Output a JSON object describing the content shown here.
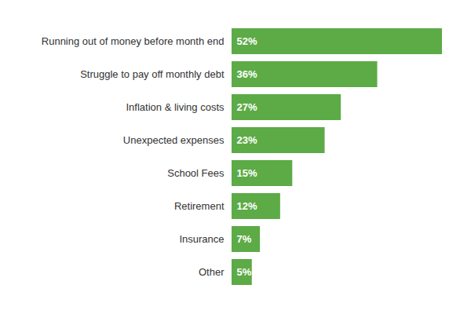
{
  "chart_data": {
    "type": "bar",
    "orientation": "horizontal",
    "categories": [
      "Running out of money before month end",
      "Struggle to pay off monthly debt",
      "Inflation & living costs",
      "Unexpected expenses",
      "School Fees",
      "Retirement",
      "Insurance",
      "Other"
    ],
    "values": [
      52,
      36,
      27,
      23,
      15,
      12,
      7,
      5
    ],
    "value_labels": [
      "52%",
      "36%",
      "27%",
      "23%",
      "15%",
      "12%",
      "7%",
      "5%"
    ],
    "color": "#5cab46",
    "xlim": [
      0,
      52
    ],
    "xticks": [],
    "data_labels": true,
    "tick_labels": "y",
    "grid": false
  }
}
